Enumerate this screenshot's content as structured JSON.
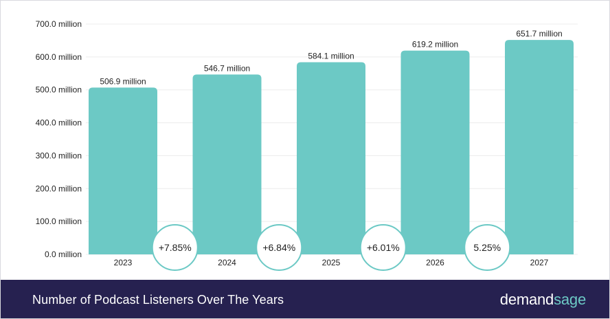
{
  "chart_data": {
    "type": "bar",
    "categories": [
      "2023",
      "2024",
      "2025",
      "2026",
      "2027"
    ],
    "values": [
      506.9,
      546.7,
      584.1,
      619.2,
      651.7
    ],
    "value_labels": [
      "506.9 million",
      "546.7 million",
      "584.1 million",
      "619.2 million",
      "651.7 million"
    ],
    "y_ticks": [
      0,
      100,
      200,
      300,
      400,
      500,
      600,
      700
    ],
    "y_tick_labels": [
      "0.0 million",
      "100.0 million",
      "200.0 million",
      "300.0 million",
      "400.0 million",
      "500.0 million",
      "600.0 million",
      "700.0 million"
    ],
    "ylim": [
      0,
      700
    ],
    "growth_labels": [
      "+7.85%",
      "+6.84%",
      "+6.01%",
      "5.25%"
    ],
    "grid": true,
    "legend": "none",
    "xlabel": "",
    "ylabel": "",
    "bar_color": "#6cc9c5"
  },
  "footer": {
    "title": "Number of Podcast Listeners Over The Years",
    "brand_part1": "demand",
    "brand_part2": "sage"
  },
  "colors": {
    "footer_bg": "#262150",
    "accent": "#6cc9c5",
    "text": "#222222",
    "grid": "#ececec"
  }
}
